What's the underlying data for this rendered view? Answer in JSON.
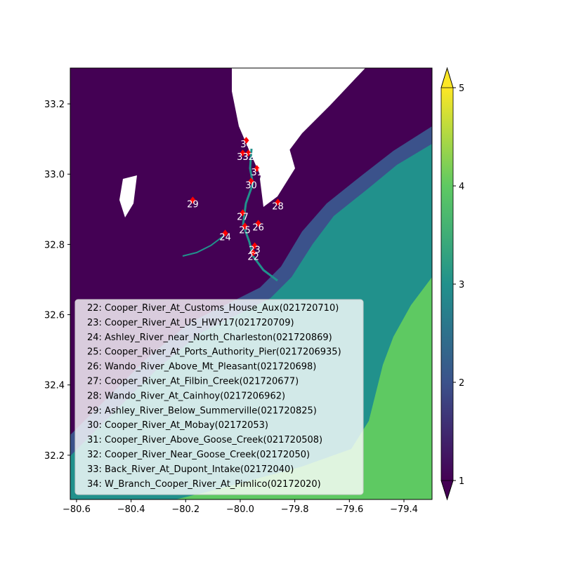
{
  "map": {
    "xlim": [
      -80.623,
      -79.297
    ],
    "ylim": [
      32.074,
      33.302
    ],
    "xticks": [
      {
        "value": -80.6,
        "label": "−80.6"
      },
      {
        "value": -80.4,
        "label": "−80.4"
      },
      {
        "value": -80.2,
        "label": "−80.2"
      },
      {
        "value": -80.0,
        "label": "−80.0"
      },
      {
        "value": -79.8,
        "label": "−79.8"
      },
      {
        "value": -79.6,
        "label": "−79.6"
      },
      {
        "value": -79.4,
        "label": "−79.4"
      }
    ],
    "yticks": [
      {
        "value": 32.2,
        "label": "32.2"
      },
      32.4,
      32.6,
      32.8,
      {
        "value": 33.0,
        "label": "33.0"
      },
      33.2
    ],
    "colorbar": {
      "lim": [
        1,
        5
      ],
      "ticks": [
        1,
        2,
        3,
        4,
        5
      ]
    },
    "marker_color": "#ff0000",
    "stations": [
      {
        "id": 22,
        "lon": -79.952,
        "lat": 32.776
      },
      {
        "id": 23,
        "lon": -79.947,
        "lat": 32.796
      },
      {
        "id": 24,
        "lon": -80.055,
        "lat": 32.832
      },
      {
        "id": 25,
        "lon": -79.983,
        "lat": 32.852
      },
      {
        "id": 26,
        "lon": -79.934,
        "lat": 32.86
      },
      {
        "id": 27,
        "lon": -79.991,
        "lat": 32.89
      },
      {
        "id": 28,
        "lon": -79.862,
        "lat": 32.92
      },
      {
        "id": 29,
        "lon": -80.174,
        "lat": 32.926
      },
      {
        "id": 30,
        "lon": -79.96,
        "lat": 32.98
      },
      {
        "id": 31,
        "lon": -79.939,
        "lat": 33.016
      },
      {
        "id": 32,
        "lon": -79.97,
        "lat": 33.06
      },
      {
        "id": 33,
        "lon": -79.991,
        "lat": 33.06
      },
      {
        "id": 34,
        "lon": -79.978,
        "lat": 33.096
      }
    ],
    "legend": [
      "22: Cooper_River_At_Customs_House_Aux(021720710)",
      "23: Cooper_River_At_US_HWY17(021720709)",
      "24: Ashley_River_near_North_Charleston(021720869)",
      "25: Cooper_River_At_Ports_Authority_Pier(0217206935)",
      "26: Wando_River_Above_Mt_Pleasant(021720698)",
      "27: Cooper_River_At_Filbin_Creek(021720677)",
      "28: Wando_River_At_Cainhoy(0217206962)",
      "29: Ashley_River_Below_Summerville(021720825)",
      "30: Cooper_River_At_Mobay(02172053)",
      "31: Cooper_River_Above_Goose_Creek(021720508)",
      "32: Cooper_River_Near_Goose_Creek(02172050)",
      "33: Back_River_At_Dupont_Intake(02172040)",
      "34: W_Branch_Cooper_River_At_Pimlico(02172020)"
    ]
  }
}
